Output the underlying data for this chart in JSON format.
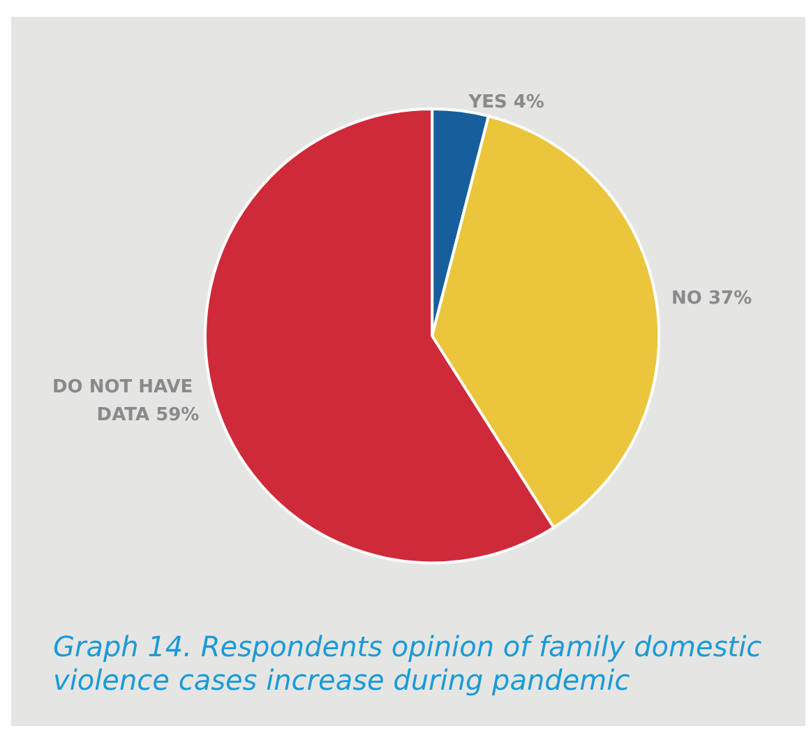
{
  "chart_data": {
    "type": "pie",
    "title": "Graph 14. Respondents opinion of family domestic violence cases increase during pandemic",
    "categories": [
      "YES",
      "NO",
      "DO NOT HAVE DATA"
    ],
    "values": [
      4,
      37,
      59
    ],
    "colors": [
      "#175f9c",
      "#ebc53b",
      "#cf2a3a"
    ],
    "value_labels": [
      "4%",
      "37%",
      "59%"
    ],
    "legend": false
  }
}
